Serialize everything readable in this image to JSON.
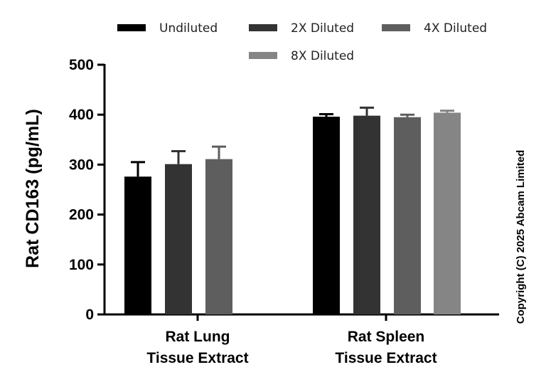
{
  "chart_data": {
    "type": "bar",
    "title": "",
    "xlabel": "",
    "ylabel": "Rat CD163 (pg/mL)",
    "ylim": [
      0,
      500
    ],
    "yticks": [
      0,
      100,
      200,
      300,
      400,
      500
    ],
    "grid": false,
    "legend_position": "top",
    "categories": [
      [
        "Rat Lung",
        "Tissue Extract"
      ],
      [
        "Rat Spleen",
        "Tissue Extract"
      ]
    ],
    "series": [
      {
        "name": "Undiluted",
        "color": "#000000",
        "values": [
          276,
          396
        ],
        "errors": [
          29,
          5
        ]
      },
      {
        "name": "2X Diluted",
        "color": "#333333",
        "values": [
          301,
          398
        ],
        "errors": [
          26,
          16
        ]
      },
      {
        "name": "4X Diluted",
        "color": "#5e5e5e",
        "values": [
          311,
          395
        ],
        "errors": [
          25,
          5
        ]
      },
      {
        "name": "8X Diluted",
        "color": "#858585",
        "values": [
          null,
          404
        ],
        "errors": [
          null,
          4
        ]
      }
    ]
  },
  "copyright": "Copyright (C) 2025 Abcam Limited"
}
